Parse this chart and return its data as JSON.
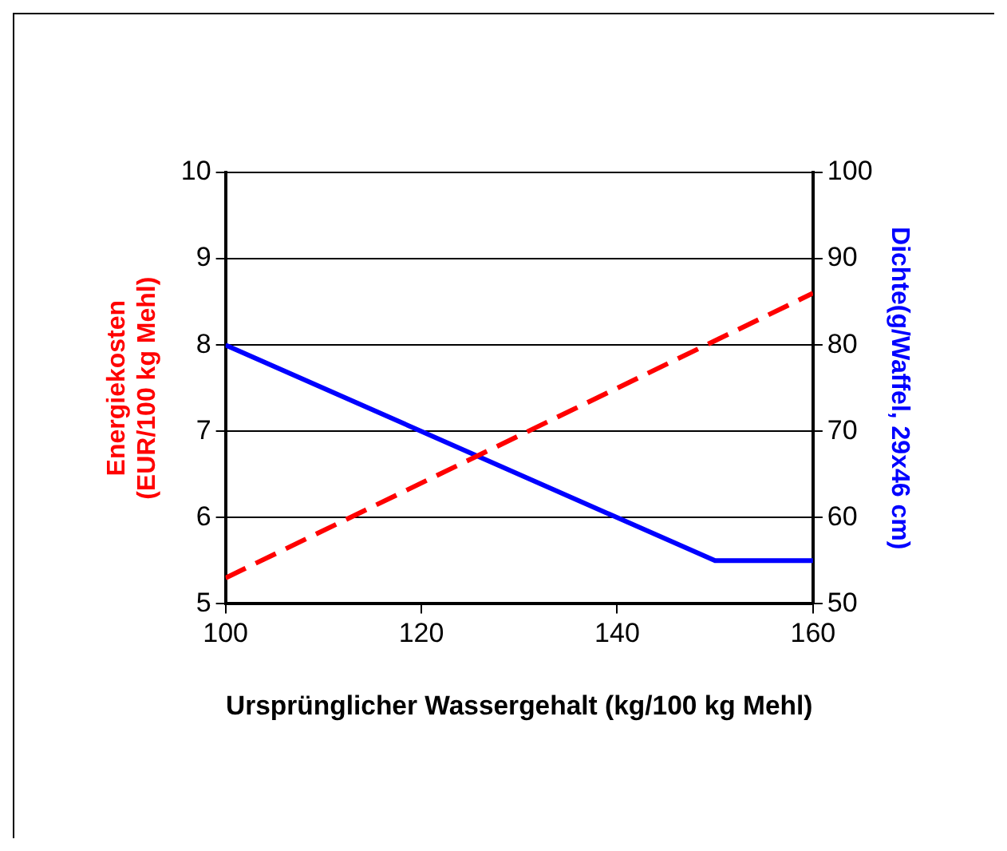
{
  "chart_data": {
    "type": "line",
    "xlabel": "Ursprünglicher Wassergehalt (kg/100 kg Mehl)",
    "ylabel": "Energiekosten\n(EUR/100 kg Mehl)",
    "y2label": "Dichte(g/Waffel, 29x46 cm)",
    "xlim": [
      100,
      160
    ],
    "xticks": [
      100,
      120,
      140,
      160
    ],
    "ylim": [
      5,
      10
    ],
    "yticks": [
      5,
      6,
      7,
      8,
      9,
      10
    ],
    "y2lim": [
      50,
      100
    ],
    "y2ticks": [
      50,
      60,
      70,
      80,
      90,
      100
    ],
    "grid": "y",
    "legend": false,
    "marker": "none",
    "series": [
      {
        "x": [
          100,
          160
        ],
        "values": [
          5.3,
          8.6
        ],
        "color": "#ff0000",
        "line_style": "dashed"
      },
      {
        "x": [
          100,
          150,
          160
        ],
        "values": [
          80,
          55,
          55
        ],
        "color": "#0000ff",
        "line_style": "solid",
        "axis": "y2"
      }
    ]
  }
}
